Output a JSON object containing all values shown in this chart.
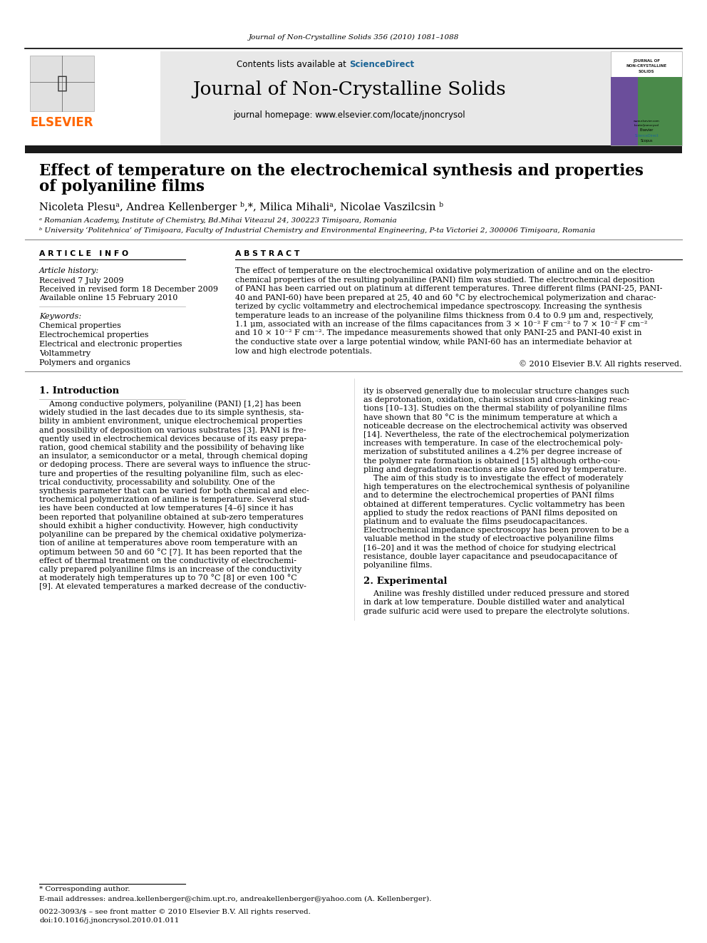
{
  "journal_header": "Journal of Non-Crystalline Solids 356 (2010) 1081–1088",
  "sciencedirect_color": "#1a6496",
  "journal_title": "Journal of Non-Crystalline Solids",
  "homepage_text": "journal homepage: www.elsevier.com/locate/jnoncrysol",
  "paper_title_line1": "Effect of temperature on the electrochemical synthesis and properties",
  "paper_title_line2": "of polyaniline films",
  "authors": "Nicoleta Plesuᵃ, Andrea Kellenberger ᵇ,*, Milica Mihaliᵃ, Nicolae Vaszilcsin ᵇ",
  "affil_a": "ᵃ Romanian Academy, Institute of Chemistry, Bd.Mihai Viteazul 24, 300223 Timişoara, Romania",
  "affil_b": "ᵇ University ‘Politehnica’ of Timişoara, Faculty of Industrial Chemistry and Environmental Engineering, P-ta Victoriei 2, 300006 Timişoara, Romania",
  "article_info_label": "A R T I C L E   I N F O",
  "abstract_label": "A B S T R A C T",
  "article_history_label": "Article history:",
  "received": "Received 7 July 2009",
  "revised": "Received in revised form 18 December 2009",
  "available": "Available online 15 February 2010",
  "keywords_label": "Keywords:",
  "keywords": [
    "Chemical properties",
    "Electrochemical properties",
    "Electrical and electronic properties",
    "Voltammetry",
    "Polymers and organics"
  ],
  "copyright": "© 2010 Elsevier B.V. All rights reserved.",
  "section1_title": "1. Introduction",
  "section2_title": "2. Experimental",
  "footnote_star": "* Corresponding author.",
  "footnote_email": "E-mail addresses: andrea.kellenberger@chim.upt.ro, andreakellenberger@yahoo.com (A. Kellenberger).",
  "issn": "0022-3093/$ – see front matter © 2010 Elsevier B.V. All rights reserved.",
  "doi": "doi:10.1016/j.jnoncrysol.2010.01.011",
  "bg_header_color": "#e8e8e8",
  "elsevier_orange": "#ff6600",
  "black_bar_color": "#1a1a1a",
  "abstract_lines": [
    "The effect of temperature on the electrochemical oxidative polymerization of aniline and on the electro-",
    "chemical properties of the resulting polyaniline (PANI) film was studied. The electrochemical deposition",
    "of PANI has been carried out on platinum at different temperatures. Three different films (PANI-25, PANI-",
    "40 and PANI-60) have been prepared at 25, 40 and 60 °C by electrochemical polymerization and charac-",
    "terized by cyclic voltammetry and electrochemical impedance spectroscopy. Increasing the synthesis",
    "temperature leads to an increase of the polyaniline films thickness from 0.4 to 0.9 μm and, respectively,",
    "1.1 μm, associated with an increase of the films capacitances from 3 × 10⁻² F cm⁻² to 7 × 10⁻² F cm⁻²",
    "and 10 × 10⁻² F cm⁻². The impedance measurements showed that only PANI-25 and PANI-40 exist in",
    "the conductive state over a large potential window, while PANI-60 has an intermediate behavior at",
    "low and high electrode potentials."
  ],
  "intro1_lines": [
    "    Among conductive polymers, polyaniline (PANI) [1,2] has been",
    "widely studied in the last decades due to its simple synthesis, sta-",
    "bility in ambient environment, unique electrochemical properties",
    "and possibility of deposition on various substrates [3]. PANI is fre-",
    "quently used in electrochemical devices because of its easy prepa-",
    "ration, good chemical stability and the possibility of behaving like",
    "an insulator, a semiconductor or a metal, through chemical doping",
    "or dedoping process. There are several ways to influence the struc-",
    "ture and properties of the resulting polyaniline film, such as elec-",
    "trical conductivity, processability and solubility. One of the",
    "synthesis parameter that can be varied for both chemical and elec-",
    "trochemical polymerization of aniline is temperature. Several stud-",
    "ies have been conducted at low temperatures [4–6] since it has",
    "been reported that polyaniline obtained at sub-zero temperatures",
    "should exhibit a higher conductivity. However, high conductivity",
    "polyaniline can be prepared by the chemical oxidative polymeriza-",
    "tion of aniline at temperatures above room temperature with an",
    "optimum between 50 and 60 °C [7]. It has been reported that the",
    "effect of thermal treatment on the conductivity of electrochemi-",
    "cally prepared polyaniline films is an increase of the conductivity",
    "at moderately high temperatures up to 70 °C [8] or even 100 °C",
    "[9]. At elevated temperatures a marked decrease of the conductiv-"
  ],
  "intro2_lines": [
    "ity is observed generally due to molecular structure changes such",
    "as deprotonation, oxidation, chain scission and cross-linking reac-",
    "tions [10–13]. Studies on the thermal stability of polyaniline films",
    "have shown that 80 °C is the minimum temperature at which a",
    "noticeable decrease on the electrochemical activity was observed",
    "[14]. Nevertheless, the rate of the electrochemical polymerization",
    "increases with temperature. In case of the electrochemical poly-",
    "merization of substituted anilines a 4.2% per degree increase of",
    "the polymer rate formation is obtained [15] although ortho-cou-",
    "pling and degradation reactions are also favored by temperature.",
    "    The aim of this study is to investigate the effect of moderately",
    "high temperatures on the electrochemical synthesis of polyaniline",
    "and to determine the electrochemical properties of PANI films",
    "obtained at different temperatures. Cyclic voltammetry has been",
    "applied to study the redox reactions of PANI films deposited on",
    "platinum and to evaluate the films pseudocapacitances.",
    "Electrochemical impedance spectroscopy has been proven to be a",
    "valuable method in the study of electroactive polyaniline films",
    "[16–20] and it was the method of choice for studying electrical",
    "resistance, double layer capacitance and pseudocapacitance of",
    "polyaniline films."
  ],
  "sec2_lines": [
    "    Aniline was freshly distilled under reduced pressure and stored",
    "in dark at low temperature. Double distilled water and analytical",
    "grade sulfuric acid were used to prepare the electrolyte solutions."
  ]
}
